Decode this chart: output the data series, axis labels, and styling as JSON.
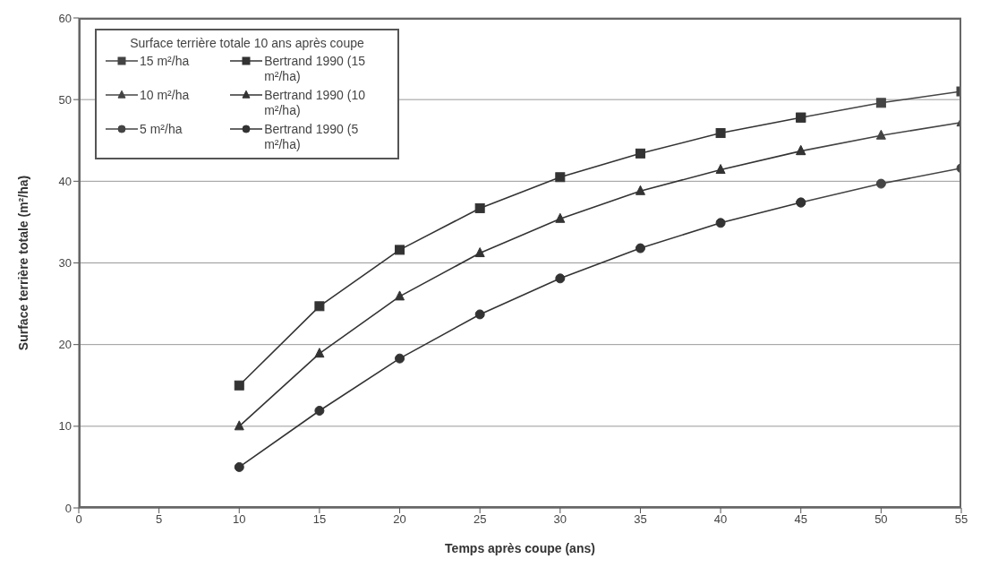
{
  "chart_data": {
    "type": "line",
    "xlabel": "Temps après coupe (ans)",
    "ylabel": "Surface terrière totale (m²/ha)",
    "legend_title": "Surface terrière totale 10 ans après coupe",
    "x": [
      10,
      15,
      20,
      25,
      30,
      35,
      40,
      45,
      50,
      55
    ],
    "series": [
      {
        "name": "15 m²/ha",
        "color": "#444444",
        "marker": "square",
        "values": [
          null,
          null,
          null,
          null,
          null,
          null,
          null,
          47.8,
          49.6,
          51.0
        ]
      },
      {
        "name": "Bertrand 1990 (15 m²/ha)",
        "color": "#333333",
        "marker": "square",
        "values": [
          15,
          24.7,
          31.6,
          36.7,
          40.5,
          43.4,
          45.9,
          47.8,
          null,
          null
        ]
      },
      {
        "name": "10 m²/ha",
        "color": "#444444",
        "marker": "triangle",
        "values": [
          null,
          null,
          null,
          null,
          null,
          null,
          null,
          43.7,
          45.6,
          47.2
        ]
      },
      {
        "name": "Bertrand 1990 (10 m²/ha)",
        "color": "#333333",
        "marker": "triangle",
        "values": [
          10,
          18.9,
          25.9,
          31.2,
          35.4,
          38.8,
          41.4,
          43.7,
          null,
          null
        ]
      },
      {
        "name": "5 m²/ha",
        "color": "#444444",
        "marker": "circle",
        "values": [
          null,
          null,
          null,
          null,
          null,
          null,
          null,
          37.4,
          39.7,
          41.6
        ]
      },
      {
        "name": "Bertrand 1990 (5 m²/ha)",
        "color": "#333333",
        "marker": "circle",
        "values": [
          5,
          11.9,
          18.3,
          23.7,
          28.1,
          31.8,
          34.9,
          37.4,
          null,
          null
        ]
      }
    ],
    "xlim": [
      0,
      55
    ],
    "xticks": [
      0,
      5,
      10,
      15,
      20,
      25,
      30,
      35,
      40,
      45,
      50,
      55
    ],
    "ylim": [
      0,
      60
    ],
    "yticks": [
      0,
      10,
      20,
      30,
      40,
      50,
      60
    ],
    "grid": "y",
    "legend": "top left"
  }
}
